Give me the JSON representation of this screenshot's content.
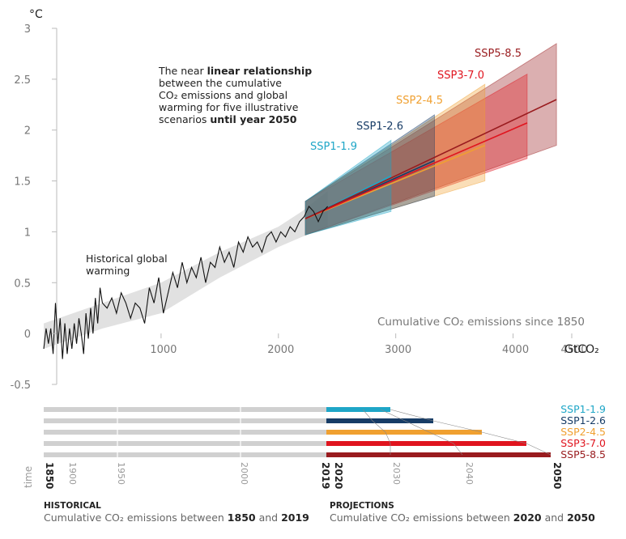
{
  "chart_data": [
    {
      "type": "line",
      "ylabel": "°C",
      "xlabel": "Cumulative CO₂ emissions since 1850",
      "x_unit": "GtCO₂",
      "xlim": [
        0,
        4500
      ],
      "ylim": [
        -0.5,
        3
      ],
      "y_ticks": [
        "3",
        "2.5",
        "2",
        "1.5",
        "1",
        "0.5",
        "0",
        "-0.5"
      ],
      "x_ticks": [
        "1000",
        "2000",
        "3000",
        "4000",
        "4500"
      ],
      "annotation": {
        "lines": [
          [
            {
              "t": "The near ",
              "b": false
            },
            {
              "t": "linear relationship",
              "b": true
            }
          ],
          [
            {
              "t": "between the cumulative",
              "b": false
            }
          ],
          [
            {
              "t": "CO₂ emissions and global",
              "b": false
            }
          ],
          [
            {
              "t": "warming for five illustrative",
              "b": false
            }
          ],
          [
            {
              "t": "scenarios ",
              "b": false
            },
            {
              "t": "until year 2050",
              "b": true
            }
          ]
        ]
      },
      "historical_label": [
        "Historical global",
        "warming"
      ],
      "historical": {
        "x": [
          0,
          20,
          40,
          60,
          80,
          100,
          120,
          140,
          160,
          180,
          200,
          220,
          240,
          260,
          280,
          300,
          320,
          340,
          360,
          380,
          400,
          420,
          440,
          460,
          480,
          500,
          540,
          580,
          620,
          660,
          700,
          740,
          780,
          820,
          860,
          900,
          940,
          980,
          1020,
          1060,
          1100,
          1140,
          1180,
          1220,
          1260,
          1300,
          1340,
          1380,
          1420,
          1460,
          1500,
          1540,
          1580,
          1620,
          1660,
          1700,
          1740,
          1780,
          1820,
          1860,
          1900,
          1940,
          1980,
          2020,
          2060,
          2100,
          2140,
          2180,
          2220,
          2260,
          2300,
          2340,
          2380,
          2420
        ],
        "y": [
          -0.15,
          0.05,
          -0.1,
          0.05,
          -0.2,
          0.3,
          -0.1,
          0.15,
          -0.25,
          0.1,
          -0.2,
          0.05,
          -0.15,
          0.1,
          -0.1,
          0.15,
          0.0,
          -0.2,
          0.2,
          -0.05,
          0.25,
          0.0,
          0.35,
          0.1,
          0.45,
          0.3,
          0.25,
          0.35,
          0.2,
          0.4,
          0.3,
          0.15,
          0.3,
          0.25,
          0.1,
          0.45,
          0.3,
          0.55,
          0.2,
          0.4,
          0.6,
          0.45,
          0.7,
          0.5,
          0.65,
          0.55,
          0.75,
          0.5,
          0.7,
          0.65,
          0.85,
          0.7,
          0.8,
          0.65,
          0.9,
          0.8,
          0.95,
          0.85,
          0.9,
          0.8,
          0.95,
          1.0,
          0.9,
          1.0,
          0.95,
          1.05,
          1.0,
          1.1,
          1.15,
          1.25,
          1.2,
          1.1,
          1.2,
          1.25
        ]
      },
      "historical_band": {
        "x": [
          0,
          500,
          1000,
          1500,
          2000,
          2200,
          2420
        ],
        "low": [
          -0.15,
          0.05,
          0.2,
          0.55,
          0.85,
          0.95,
          1.05
        ],
        "high": [
          0.1,
          0.3,
          0.5,
          0.8,
          1.05,
          1.2,
          1.4
        ]
      },
      "series": [
        {
          "name": "SSP1-1.9",
          "color": "#1ea6c7",
          "x_end": 2960,
          "y_end": 1.55,
          "band_top": [
            1.3,
            1.9
          ],
          "band_bot": [
            0.97,
            1.2
          ]
        },
        {
          "name": "SSP1-2.6",
          "color": "#173c66",
          "x_end": 3330,
          "y_end": 1.7,
          "band_top": [
            1.3,
            2.15
          ],
          "band_bot": [
            0.97,
            1.35
          ]
        },
        {
          "name": "SSP2-4.5",
          "color": "#f0a030",
          "x_end": 3760,
          "y_end": 1.85,
          "band_top": [
            1.3,
            2.45
          ],
          "band_bot": [
            0.97,
            1.5
          ]
        },
        {
          "name": "SSP3-7.0",
          "color": "#e0141e",
          "x_end": 4120,
          "y_end": 2.07,
          "band_top": [
            1.3,
            2.55
          ],
          "band_bot": [
            0.97,
            1.72
          ]
        },
        {
          "name": "SSP5-8.5",
          "color": "#991b1e",
          "x_end": 4370,
          "y_end": 2.3,
          "band_top": [
            1.3,
            2.85
          ],
          "band_bot": [
            0.97,
            1.85
          ]
        }
      ]
    },
    {
      "type": "bar",
      "orientation": "horizontal",
      "x_axis_label": "time",
      "year_ticks": [
        "1850",
        "1900",
        "1950",
        "2000",
        "2019",
        "2020",
        "2030",
        "2040",
        "2050"
      ],
      "bold_years": [
        "1850",
        "2019",
        "2020",
        "2050"
      ],
      "categories": [
        "SSP1-1.9",
        "SSP1-2.6",
        "SSP2-4.5",
        "SSP3-7.0",
        "SSP5-8.5"
      ],
      "historical_emissions_end": 2390,
      "projection_end": [
        2960,
        3330,
        3760,
        4120,
        4370
      ],
      "projection_years": [
        2020,
        2030,
        2040,
        2050
      ]
    }
  ],
  "footer": {
    "historical_heading": "HISTORICAL",
    "historical_text": [
      "Cumulative CO₂ emissions between ",
      "1850",
      " and ",
      "2019"
    ],
    "projections_heading": "PROJECTIONS",
    "projections_text": [
      "Cumulative CO₂ emissions between ",
      "2020",
      " and ",
      "2050"
    ]
  }
}
